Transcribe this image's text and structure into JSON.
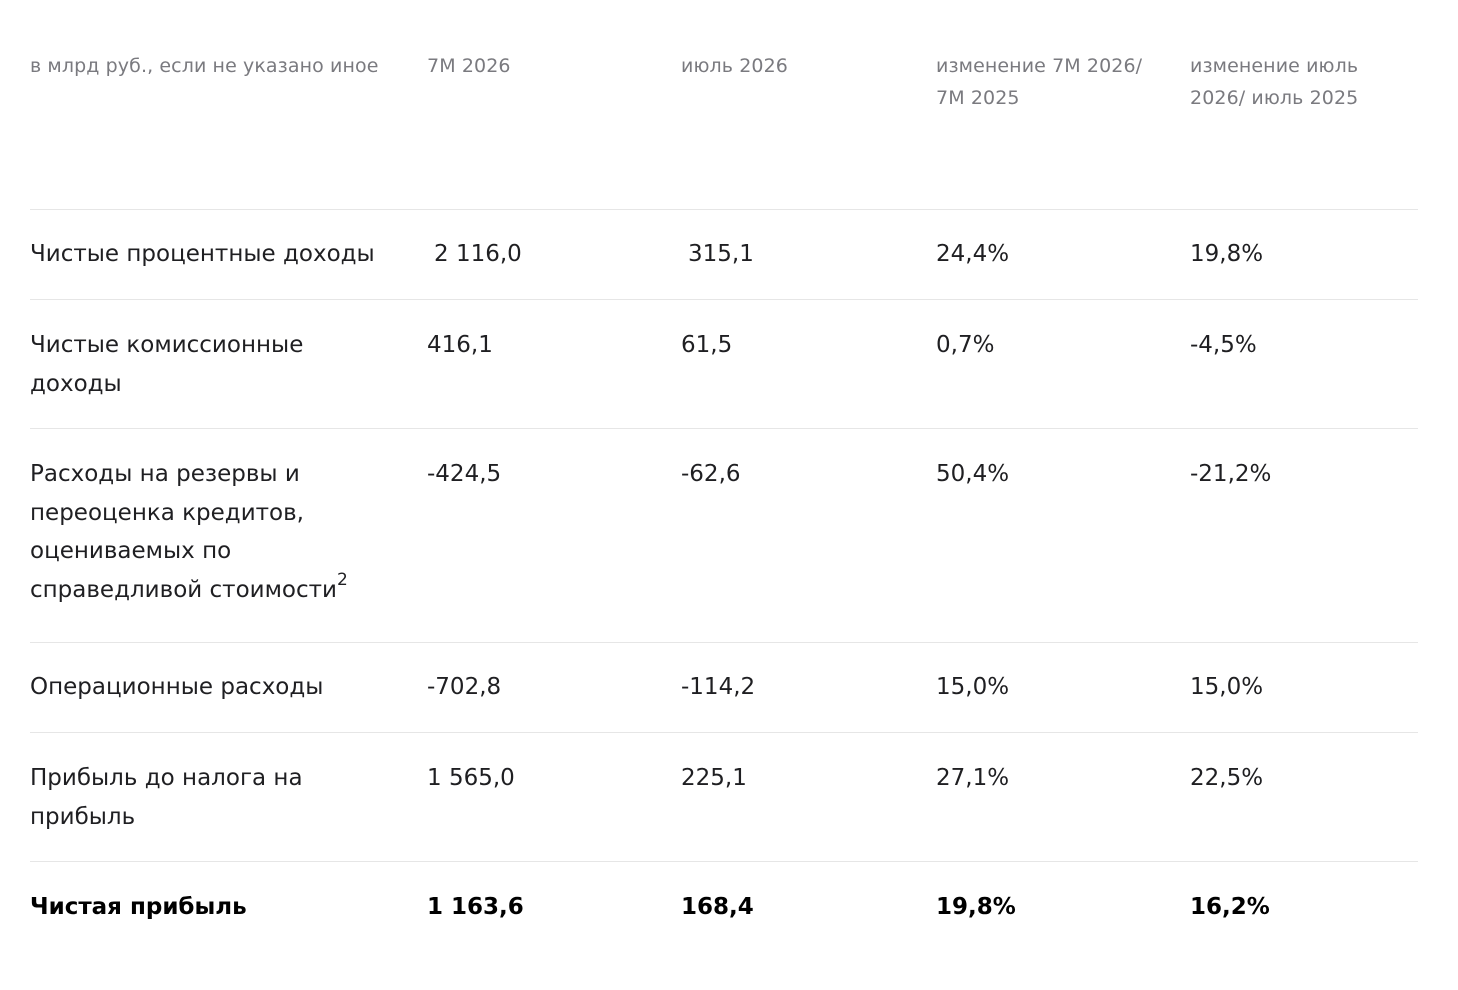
{
  "header": {
    "col0": "в млрд руб., если не указано иное",
    "col1": "7М 2026",
    "col2": "июль 2026",
    "col3": "изменение 7М 2026/ 7М 2025",
    "col4": "изменение июль 2026/ июль 2025"
  },
  "rows": [
    {
      "label": "Чистые процентные доходы",
      "v1": "2 116,0",
      "v2": "315,1",
      "v3": "24,4%",
      "v4": "19,8%"
    },
    {
      "label": "Чистые комиссионные доходы",
      "v1": "416,1",
      "v2": "61,5",
      "v3": "0,7%",
      "v4": "-4,5%"
    },
    {
      "label": "Расходы на резервы и переоценка кредитов, оцениваемых по справедливой стоимости",
      "footnote": "2",
      "v1": "-424,5",
      "v2": "-62,6",
      "v3": "50,4%",
      "v4": "-21,2%"
    },
    {
      "label": "Операционные расходы",
      "v1": "-702,8",
      "v2": "-114,2",
      "v3": "15,0%",
      "v4": "15,0%"
    },
    {
      "label": "Прибыль до налога на прибыль",
      "v1": "1 565,0",
      "v2": "225,1",
      "v3": "27,1%",
      "v4": "22,5%"
    },
    {
      "label": "Чистая прибыль",
      "v1": "1 163,6",
      "v2": "168,4",
      "v3": "19,8%",
      "v4": "16,2%"
    }
  ]
}
